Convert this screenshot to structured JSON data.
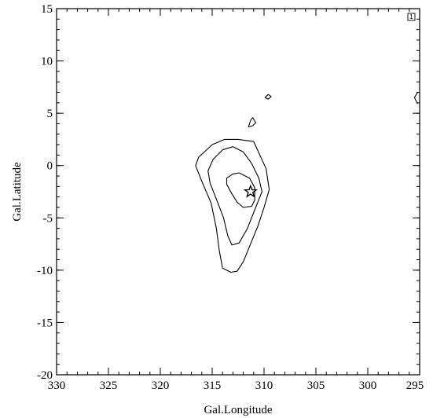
{
  "chart_data": {
    "type": "contour",
    "xlabel": "Gal.Longitude",
    "ylabel": "Gal.Latitude",
    "xlim": [
      330,
      295
    ],
    "ylim": [
      -20,
      15
    ],
    "x_ticks": [
      "330",
      "325",
      "320",
      "315",
      "310",
      "305",
      "300",
      "295"
    ],
    "y_ticks": [
      "15",
      "10",
      "5",
      "0",
      "-5",
      "-10",
      "-15",
      "-20"
    ],
    "x_minor_step": 1,
    "y_minor_step": 1,
    "corner_badge": "1",
    "marker": {
      "symbol": "star",
      "x": 311.3,
      "y": -2.5
    },
    "contours": [
      {
        "level": "outer",
        "points": [
          [
            312.5,
            2.5
          ],
          [
            311.0,
            2.3
          ],
          [
            309.8,
            -0.3
          ],
          [
            309.5,
            -2.3
          ],
          [
            310.0,
            -4.0
          ],
          [
            310.6,
            -5.8
          ],
          [
            311.3,
            -7.5
          ],
          [
            312.0,
            -9.2
          ],
          [
            312.6,
            -10.1
          ],
          [
            313.2,
            -10.2
          ],
          [
            314.0,
            -9.8
          ],
          [
            314.3,
            -8.2
          ],
          [
            314.6,
            -6.0
          ],
          [
            315.1,
            -3.6
          ],
          [
            316.0,
            -1.5
          ],
          [
            316.6,
            0.0
          ],
          [
            316.3,
            0.8
          ],
          [
            315.0,
            2.0
          ],
          [
            313.8,
            2.5
          ],
          [
            312.5,
            2.5
          ]
        ]
      },
      {
        "level": "middle",
        "points": [
          [
            313.0,
            1.8
          ],
          [
            312.0,
            1.3
          ],
          [
            311.2,
            0.2
          ],
          [
            310.5,
            -1.2
          ],
          [
            310.2,
            -2.5
          ],
          [
            310.8,
            -4.0
          ],
          [
            311.6,
            -6.0
          ],
          [
            312.4,
            -7.4
          ],
          [
            313.1,
            -7.6
          ],
          [
            313.5,
            -6.7
          ],
          [
            313.9,
            -5.0
          ],
          [
            314.6,
            -3.2
          ],
          [
            315.2,
            -1.7
          ],
          [
            315.4,
            -0.5
          ],
          [
            314.9,
            0.6
          ],
          [
            314.0,
            1.5
          ],
          [
            313.0,
            1.8
          ]
        ]
      },
      {
        "level": "inner",
        "points": [
          [
            312.4,
            -0.7
          ],
          [
            311.4,
            -1.2
          ],
          [
            310.9,
            -2.1
          ],
          [
            310.9,
            -3.3
          ],
          [
            311.2,
            -3.9
          ],
          [
            312.0,
            -4.0
          ],
          [
            312.6,
            -3.5
          ],
          [
            313.1,
            -2.7
          ],
          [
            313.6,
            -1.8
          ],
          [
            313.6,
            -1.2
          ],
          [
            313.0,
            -0.8
          ],
          [
            312.4,
            -0.7
          ]
        ]
      },
      {
        "level": "peak",
        "points": [
          [
            311.1,
            4.6
          ],
          [
            310.8,
            4.1
          ],
          [
            311.1,
            3.8
          ],
          [
            311.5,
            3.7
          ],
          [
            311.3,
            4.3
          ],
          [
            311.1,
            4.6
          ]
        ]
      },
      {
        "level": "peak",
        "points": [
          [
            309.3,
            6.6
          ],
          [
            309.6,
            6.35
          ],
          [
            309.9,
            6.5
          ],
          [
            309.6,
            6.8
          ],
          [
            309.3,
            6.6
          ]
        ]
      },
      {
        "level": "peak",
        "points": [
          [
            295.2,
            7.0
          ],
          [
            295.5,
            6.5
          ],
          [
            295.2,
            5.9
          ]
        ]
      }
    ]
  }
}
